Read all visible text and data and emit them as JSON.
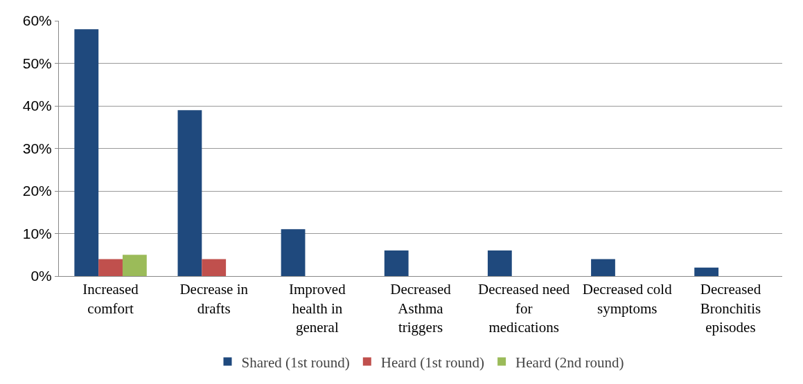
{
  "chart_data": {
    "type": "bar",
    "categories": [
      "Increased comfort",
      "Decrease in drafts",
      "Improved health in general",
      "Decreased Asthma triggers",
      "Decreased need for medications",
      "Decreased cold symptoms",
      "Decreased Bronchitis episodes"
    ],
    "series": [
      {
        "name": "Shared (1st round)",
        "color": "#1f497d",
        "values": [
          58,
          39,
          11,
          6,
          6,
          4,
          2
        ]
      },
      {
        "name": "Heard (1st round)",
        "color": "#c0504d",
        "values": [
          4,
          4,
          0,
          0,
          0,
          0,
          0
        ]
      },
      {
        "name": "Heard (2nd round)",
        "color": "#9bbb59",
        "values": [
          5,
          0,
          0,
          0,
          0,
          0,
          0
        ]
      }
    ],
    "ylim": [
      0,
      60
    ],
    "yticks": [
      {
        "value": 0,
        "label": "0%"
      },
      {
        "value": 10,
        "label": "10%"
      },
      {
        "value": 20,
        "label": "20%"
      },
      {
        "value": 30,
        "label": "30%"
      },
      {
        "value": 40,
        "label": "40%"
      },
      {
        "value": 50,
        "label": "50%"
      },
      {
        "value": 60,
        "label": "60%"
      }
    ],
    "grid": "y",
    "legend": "bottom"
  }
}
